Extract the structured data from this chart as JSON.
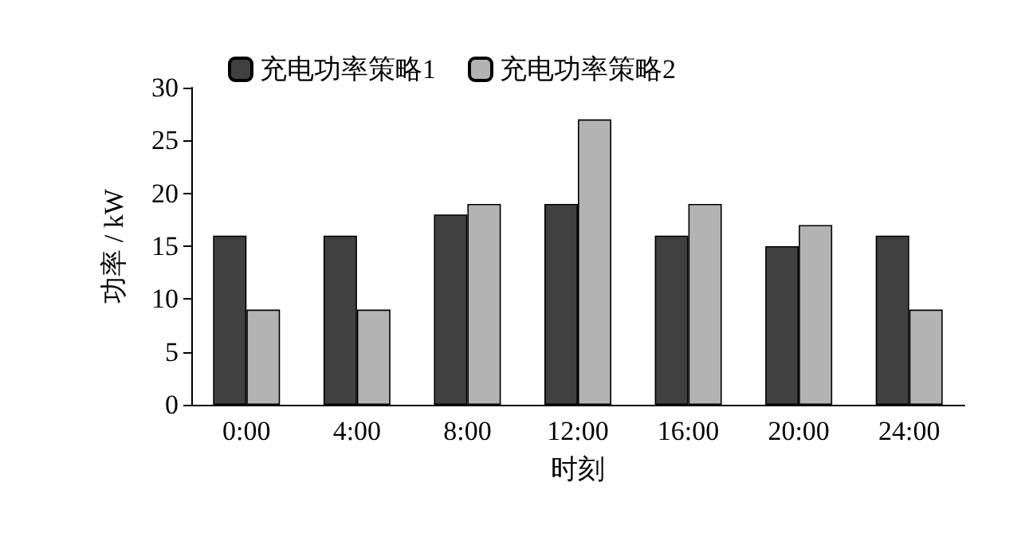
{
  "chart_data": {
    "type": "bar",
    "xlabel": "时刻",
    "ylabel": "功率 / kW",
    "categories": [
      "0:00",
      "4:00",
      "8:00",
      "12:00",
      "16:00",
      "20:00",
      "24:00"
    ],
    "series": [
      {
        "name": "充电功率策略1",
        "color": "#404040",
        "values": [
          16,
          16,
          18,
          19,
          16,
          15,
          16
        ]
      },
      {
        "name": "充电功率策略2",
        "color": "#b3b3b3",
        "values": [
          9,
          9,
          19,
          27,
          19,
          17,
          9
        ]
      }
    ],
    "ylim": [
      0,
      30
    ],
    "yticks": [
      0,
      5,
      10,
      15,
      20,
      25,
      30
    ],
    "grid": false,
    "legend": "top left"
  }
}
